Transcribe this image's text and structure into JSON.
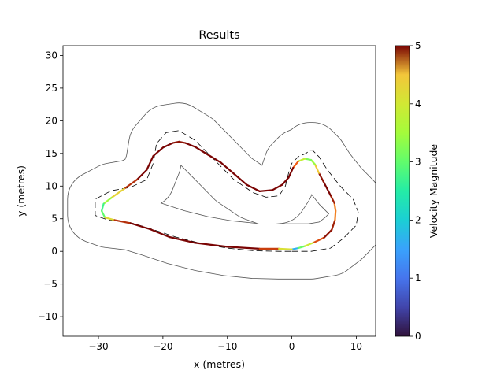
{
  "chart_data": {
    "type": "line",
    "title": "Results",
    "xlabel": "x (metres)",
    "ylabel": "y (metres)",
    "xlim": [
      -35.5,
      13
    ],
    "ylim": [
      -13,
      31.5
    ],
    "xticks": [
      -30,
      -20,
      -10,
      0,
      10
    ],
    "yticks": [
      -10,
      -5,
      0,
      5,
      10,
      15,
      20,
      25,
      30
    ],
    "grid": false,
    "colorbar": {
      "label": "Velocity Magnitude",
      "range": [
        0,
        5
      ],
      "ticks": [
        0,
        1,
        2,
        3,
        4,
        5
      ],
      "colormap": "turbo"
    },
    "track_centerline": {
      "x": [
        0,
        3,
        6,
        8,
        10,
        10.3,
        9.5,
        7.5,
        5.5,
        4.2,
        3.2,
        2.8,
        2.2,
        1,
        0,
        -0.5,
        -1,
        -2,
        -4,
        -6,
        -9,
        -12,
        -15,
        -17.5,
        -19.5,
        -21,
        -21.5,
        -22.5,
        -25,
        -28,
        -30.5,
        -30.5,
        -28.5,
        -25,
        -22,
        -18,
        -14,
        -10,
        -6,
        -2,
        0
      ],
      "y": [
        0,
        0,
        0.5,
        2,
        4,
        6,
        8,
        10,
        12.5,
        14.5,
        15.5,
        15.5,
        15,
        14.5,
        13.5,
        12,
        10,
        8.5,
        8.3,
        9,
        11,
        14,
        17,
        18.5,
        18.2,
        16.5,
        13.5,
        11,
        9.8,
        9.3,
        8,
        5.5,
        4.8,
        4.4,
        3.5,
        2.2,
        1.2,
        0.5,
        0.1,
        0,
        0
      ]
    },
    "series": [
      {
        "x": [
          0,
          1,
          2,
          3.5,
          5,
          6.2,
          6.7,
          6.8,
          6.6,
          6,
          5,
          4.2,
          3.6,
          3,
          2,
          1,
          0.2,
          -0.5,
          -1.5,
          -3,
          -5,
          -7,
          -9,
          -11,
          -13,
          -15,
          -16.5,
          -17.5,
          -18.5,
          -20,
          -21.5,
          -22.5,
          -24,
          -26,
          -28,
          -29.2,
          -29.5,
          -29,
          -27.5,
          -25,
          -22,
          -19,
          -15,
          -10,
          -5,
          -2,
          0
        ],
        "y": [
          0.3,
          0.5,
          0.8,
          1.4,
          2.1,
          3.3,
          4.8,
          6.2,
          7.4,
          8.6,
          10.5,
          12,
          13.3,
          14,
          14.2,
          13.8,
          12.8,
          11.3,
          10.2,
          9.4,
          9.2,
          10.2,
          11.9,
          13.6,
          14.8,
          16,
          16.6,
          16.8,
          16.6,
          15.9,
          14.6,
          12.5,
          11,
          9.6,
          8.2,
          7.3,
          6.2,
          5.2,
          4.8,
          4.3,
          3.4,
          2.2,
          1.3,
          0.7,
          0.4,
          0.4,
          0.3
        ],
        "velocity": [
          0.5,
          2.8,
          3.3,
          4.6,
          4.9,
          5,
          4.8,
          4.4,
          4.8,
          5,
          5,
          4.9,
          3.8,
          3.1,
          3.3,
          4.4,
          5,
          5,
          5,
          5,
          5,
          5,
          5,
          5,
          5,
          5,
          5,
          4.9,
          5,
          5,
          5,
          5,
          5,
          4.7,
          3.8,
          3.1,
          2.4,
          3.6,
          4.7,
          5,
          5,
          5,
          5,
          5,
          5,
          4.6,
          3.6
        ]
      }
    ]
  }
}
